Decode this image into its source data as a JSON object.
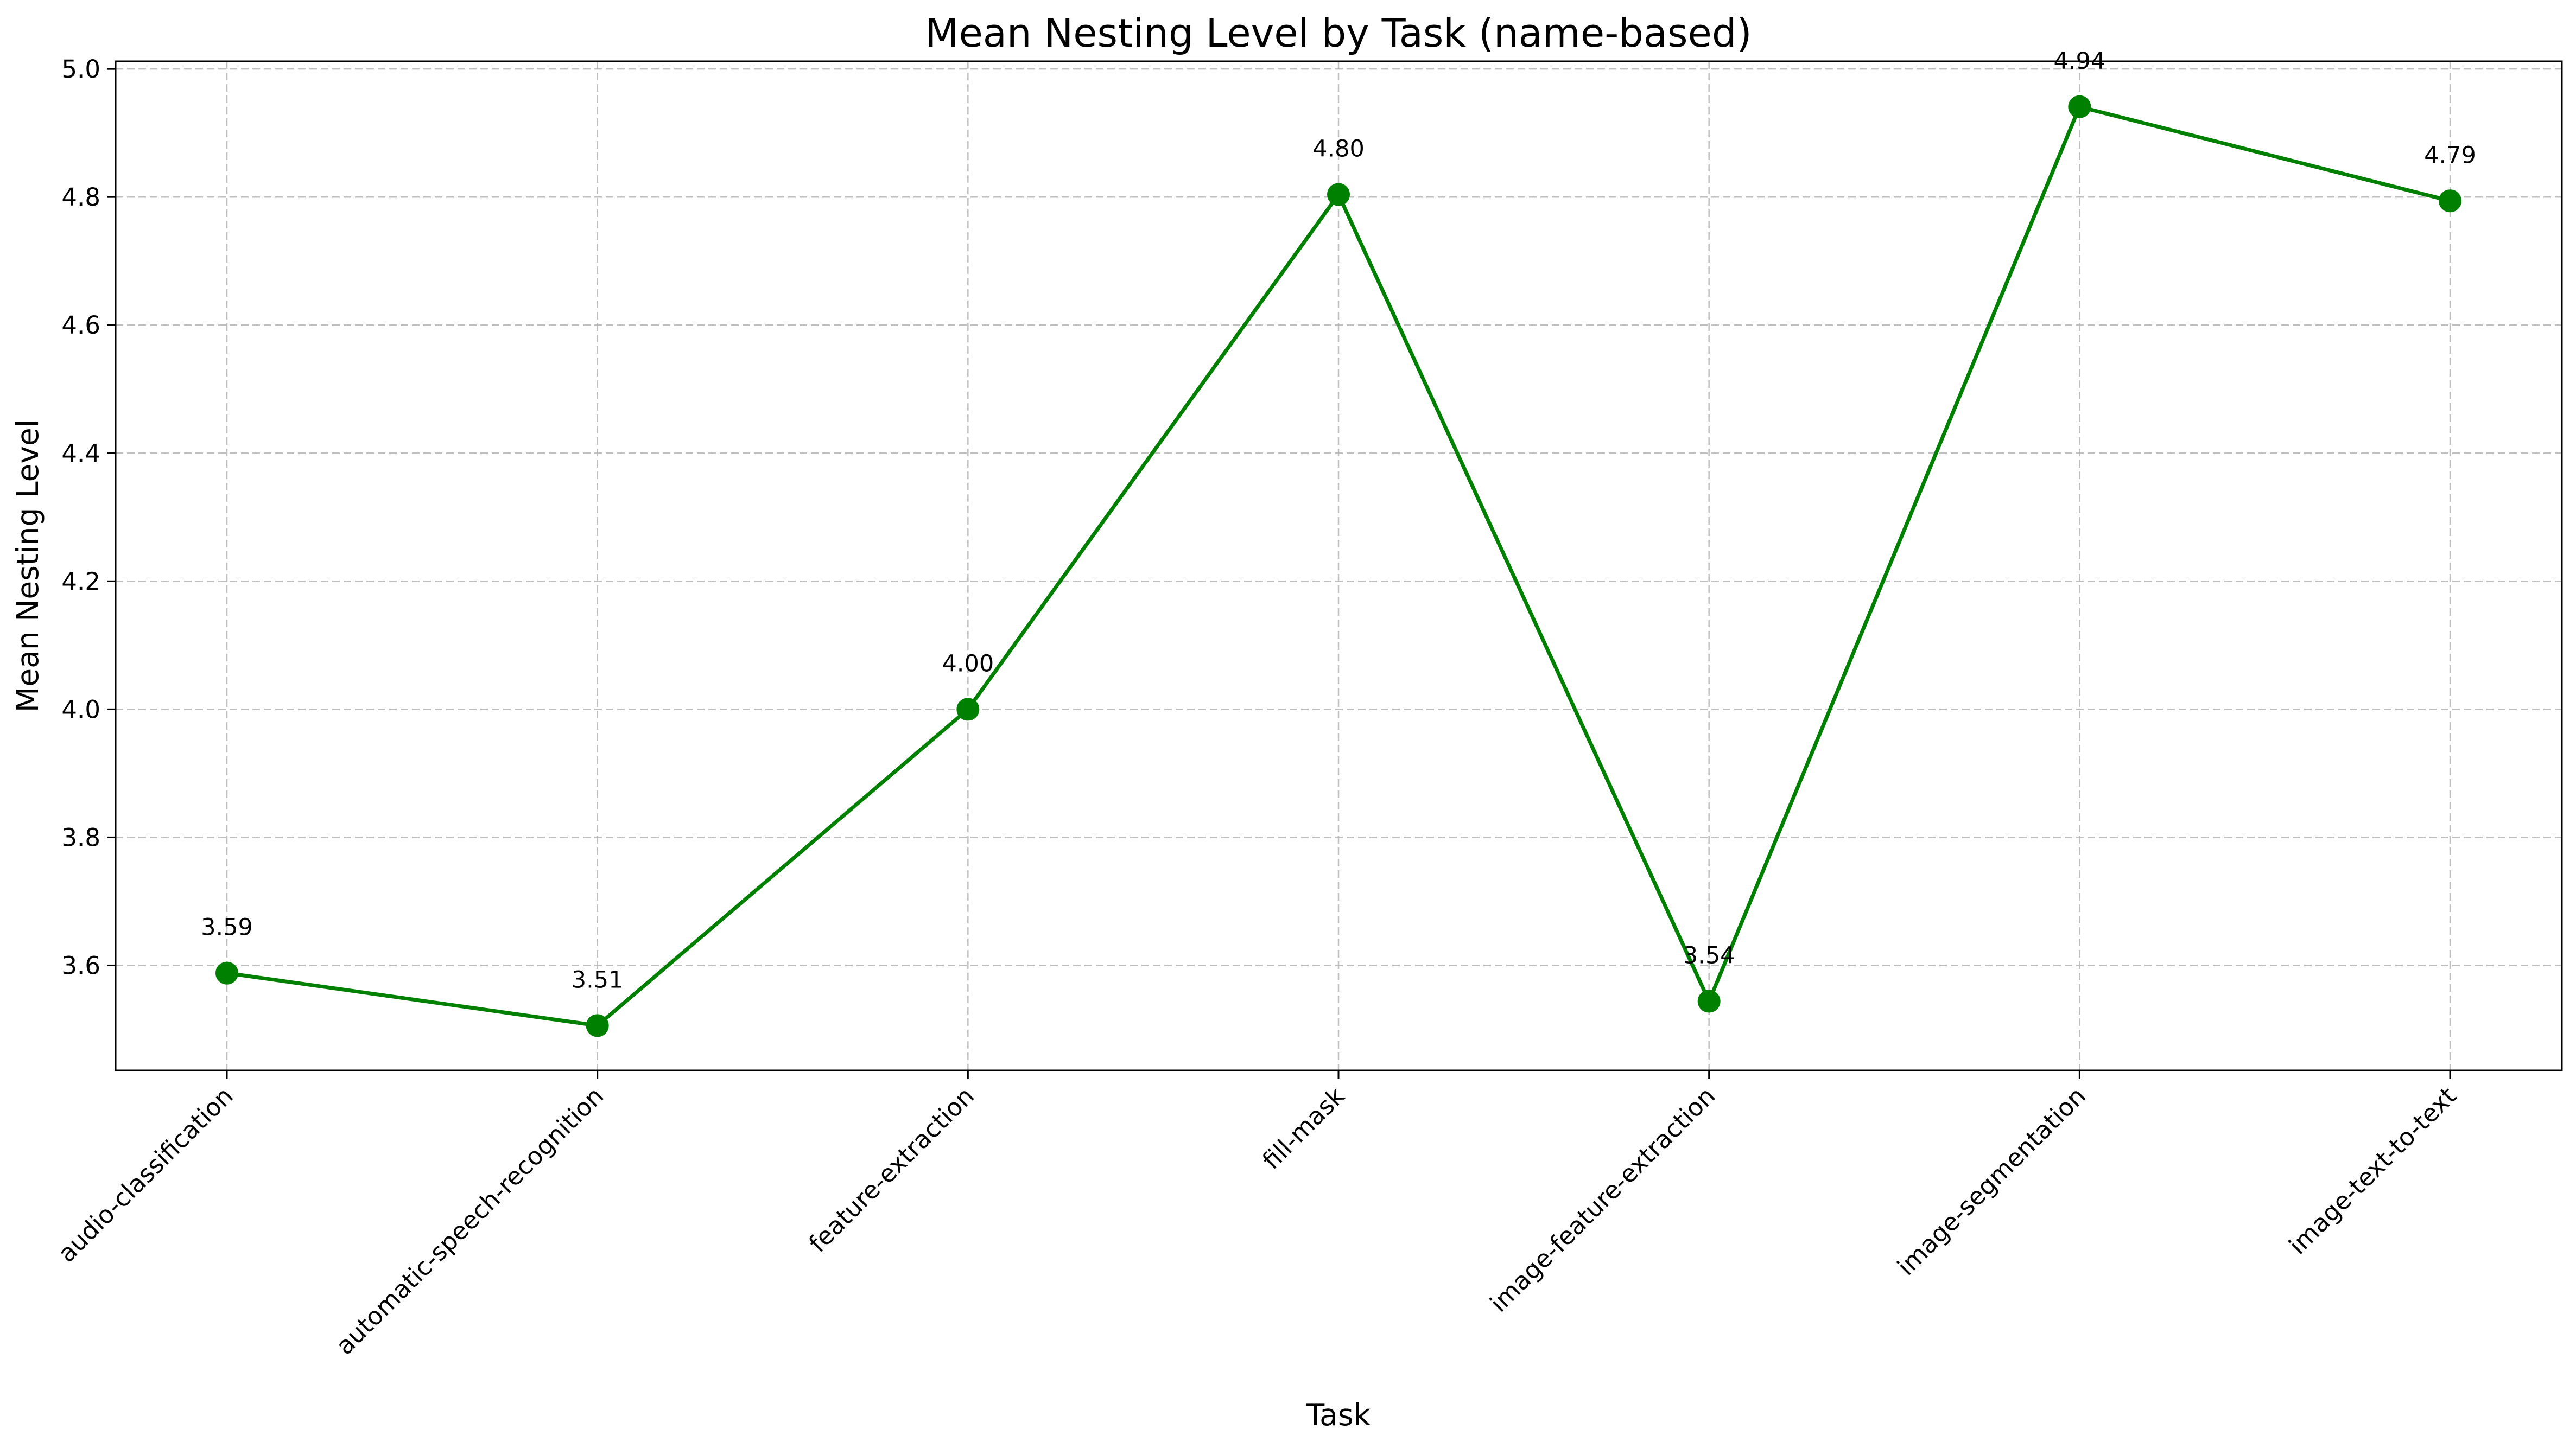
{
  "chart_data": {
    "type": "line",
    "title": "Mean Nesting Level by Task (name-based)",
    "xlabel": "Task",
    "ylabel": "Mean Nesting Level",
    "categories": [
      "audio-classification",
      "automatic-speech-recognition",
      "feature-extraction",
      "fill-mask",
      "image-feature-extraction",
      "image-segmentation",
      "image-text-to-text"
    ],
    "series": [
      {
        "values": [
          3.588,
          3.506,
          4.0,
          4.804,
          3.544,
          4.941,
          4.794
        ],
        "data_labels": [
          "3.59",
          "3.51",
          "4.00",
          "4.80",
          "3.54",
          "4.94",
          "4.79"
        ],
        "color": "#008000",
        "marker": "circle"
      }
    ],
    "ylim": [
      3.436,
      5.012
    ],
    "yticks": [
      3.6,
      3.8,
      4.0,
      4.2,
      4.4,
      4.6,
      4.8,
      5.0
    ],
    "ytick_labels": [
      "3.6",
      "3.8",
      "4.0",
      "4.2",
      "4.4",
      "4.6",
      "4.8",
      "5.0"
    ],
    "grid": true,
    "grid_style": "dashed",
    "legend": "none",
    "xtick_rotation": 45
  }
}
